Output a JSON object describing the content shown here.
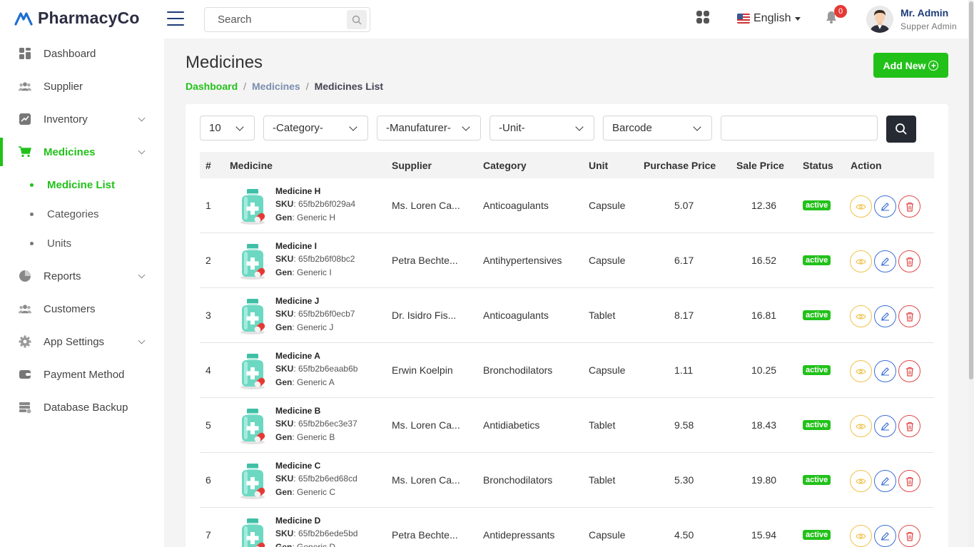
{
  "brand": {
    "name": "PharmacyCo"
  },
  "header": {
    "search_placeholder": "Search",
    "language": "English",
    "notifications": "0",
    "user_name": "Mr. Admin",
    "user_role": "Supper Admin"
  },
  "sidebar": {
    "items": [
      {
        "label": "Dashboard",
        "icon": "dashboard-icon"
      },
      {
        "label": "Supplier",
        "icon": "users-icon"
      },
      {
        "label": "Inventory",
        "icon": "chart-icon"
      },
      {
        "label": "Medicines",
        "icon": "cart-icon"
      },
      {
        "label": "Reports",
        "icon": "pie-chart-icon"
      },
      {
        "label": "Customers",
        "icon": "users-icon"
      },
      {
        "label": "App Settings",
        "icon": "gear-icon"
      },
      {
        "label": "Payment Method",
        "icon": "wallet-icon"
      },
      {
        "label": "Database Backup",
        "icon": "database-icon"
      }
    ],
    "sub_items": [
      {
        "label": "Medicine List"
      },
      {
        "label": "Categories"
      },
      {
        "label": "Units"
      }
    ]
  },
  "page": {
    "title": "Medicines",
    "breadcrumb": [
      "Dashboard",
      "Medicines",
      "Medicines List"
    ],
    "add_label": "Add New"
  },
  "filters": {
    "per_page": "10",
    "category": "-Category-",
    "manufacturer": "-Manufaturer-",
    "unit": "-Unit-",
    "barcode": "Barcode"
  },
  "table": {
    "headers": [
      "#",
      "Medicine",
      "Supplier",
      "Category",
      "Unit",
      "Purchase Price",
      "Sale Price",
      "Status",
      "Action"
    ],
    "rows": [
      {
        "no": "1",
        "name": "Medicine H",
        "sku": "65fb2b6f029a4",
        "gen": "Generic H",
        "supplier": "Ms. Loren Ca...",
        "category": "Anticoagulants",
        "unit": "Capsule",
        "purchase": "5.07",
        "sale": "12.36",
        "status": "active"
      },
      {
        "no": "2",
        "name": "Medicine I",
        "sku": "65fb2b6f08bc2",
        "gen": "Generic I",
        "supplier": "Petra Bechte...",
        "category": "Antihypertensives",
        "unit": "Capsule",
        "purchase": "6.17",
        "sale": "16.52",
        "status": "active"
      },
      {
        "no": "3",
        "name": "Medicine J",
        "sku": "65fb2b6f0ecb7",
        "gen": "Generic J",
        "supplier": "Dr. Isidro Fis...",
        "category": "Anticoagulants",
        "unit": "Tablet",
        "purchase": "8.17",
        "sale": "16.81",
        "status": "active"
      },
      {
        "no": "4",
        "name": "Medicine A",
        "sku": "65fb2b6eaab6b",
        "gen": "Generic A",
        "supplier": "Erwin Koelpin",
        "category": "Bronchodilators",
        "unit": "Capsule",
        "purchase": "1.11",
        "sale": "10.25",
        "status": "active"
      },
      {
        "no": "5",
        "name": "Medicine B",
        "sku": "65fb2b6ec3e37",
        "gen": "Generic B",
        "supplier": "Ms. Loren Ca...",
        "category": "Antidiabetics",
        "unit": "Tablet",
        "purchase": "9.58",
        "sale": "18.43",
        "status": "active"
      },
      {
        "no": "6",
        "name": "Medicine C",
        "sku": "65fb2b6ed68cd",
        "gen": "Generic C",
        "supplier": "Ms. Loren Ca...",
        "category": "Bronchodilators",
        "unit": "Tablet",
        "purchase": "5.30",
        "sale": "19.80",
        "status": "active"
      },
      {
        "no": "7",
        "name": "Medicine D",
        "sku": "65fb2b6ede5bd",
        "gen": "Generic D",
        "supplier": "Petra Bechte...",
        "category": "Antidepressants",
        "unit": "Capsule",
        "purchase": "4.50",
        "sale": "15.94",
        "status": "active"
      }
    ]
  },
  "colors": {
    "accent": "#22c11a",
    "dark": "#262a33",
    "view": "#f0c24b",
    "edit": "#3b6fd4",
    "delete": "#e04848"
  }
}
